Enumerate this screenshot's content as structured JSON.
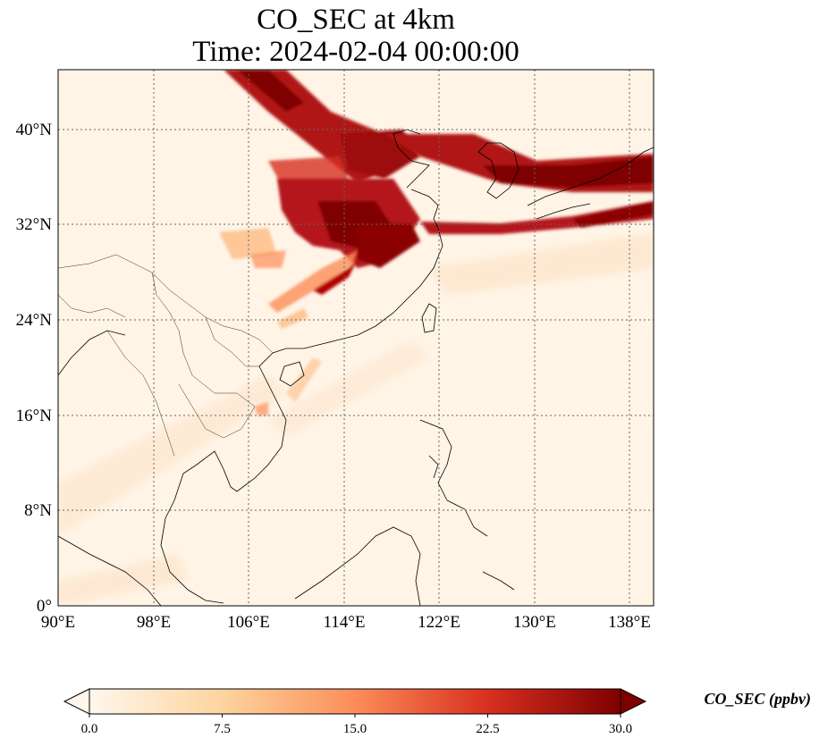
{
  "title": {
    "line1": "CO_SEC at 4km",
    "line2": "Time: 2024-02-04 00:00:00"
  },
  "map": {
    "lon_range": [
      90,
      140
    ],
    "lat_range": [
      0,
      45
    ],
    "gridlines": true,
    "lon_ticks": [
      "90°E",
      "98°E",
      "106°E",
      "114°E",
      "122°E",
      "130°E",
      "138°E"
    ],
    "lat_ticks": [
      "0°",
      "8°N",
      "16°N",
      "24°N",
      "32°N",
      "40°N"
    ]
  },
  "colorbar": {
    "label": "CO_SEC (ppbv)",
    "ticks": [
      "0.0",
      "7.5",
      "15.0",
      "22.5",
      "30.0"
    ],
    "min": 0,
    "max": 30,
    "extend": "both",
    "colormap": "OrRd"
  },
  "colors": {
    "low": "#fff4e6",
    "mid": "#f08050",
    "high": "#7f0000"
  }
}
